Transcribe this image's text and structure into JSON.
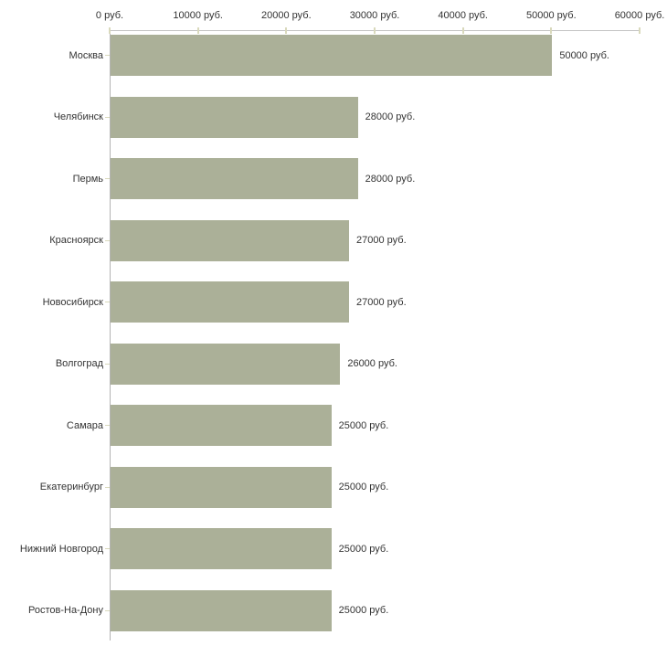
{
  "chart_data": {
    "type": "bar",
    "orientation": "horizontal",
    "title": "",
    "xlabel": "",
    "ylabel": "",
    "categories": [
      "Москва",
      "Челябинск",
      "Пермь",
      "Красноярск",
      "Новосибирск",
      "Волгоград",
      "Самара",
      "Екатеринбург",
      "Нижний Новгород",
      "Ростов-На-Дону"
    ],
    "values": [
      50000,
      28000,
      28000,
      27000,
      27000,
      26000,
      25000,
      25000,
      25000,
      25000
    ],
    "value_labels": [
      "50000 руб.",
      "28000 руб.",
      "28000 руб.",
      "27000 руб.",
      "27000 руб.",
      "26000 руб.",
      "25000 руб.",
      "25000 руб.",
      "25000 руб.",
      "25000 руб."
    ],
    "x_ticks": [
      0,
      10000,
      20000,
      30000,
      40000,
      50000,
      60000
    ],
    "x_tick_labels": [
      "0 руб.",
      "10000 руб.",
      "20000 руб.",
      "30000 руб.",
      "40000 руб.",
      "50000 руб.",
      "60000 руб."
    ],
    "xlim": [
      0,
      60000
    ],
    "grid": false,
    "legend": false,
    "colors": {
      "bar": "#abb098",
      "x_axis_line": "#c3c3c3",
      "y_axis_line": "#b3b3b3",
      "tick": "#d9d9bc",
      "text": "#333333",
      "background": "#ffffff"
    }
  }
}
